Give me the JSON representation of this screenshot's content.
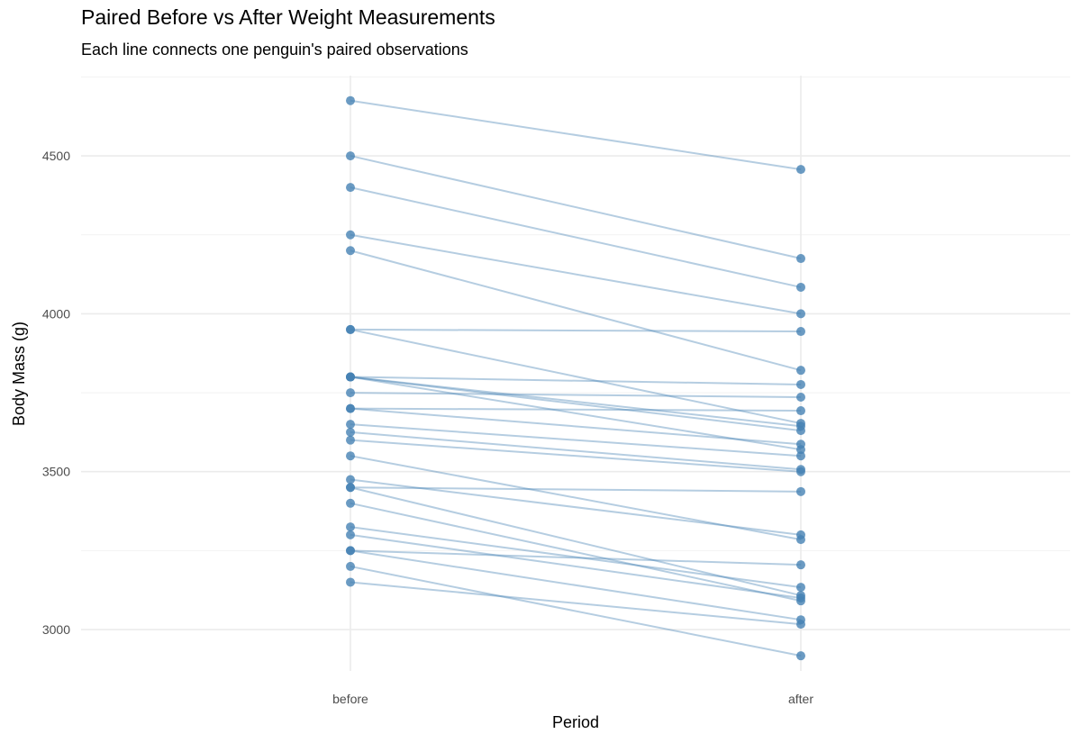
{
  "chart_data": {
    "type": "line",
    "title": "Paired Before vs After Weight Measurements",
    "subtitle": "Each line connects one penguin's paired observations",
    "xlabel": "Period",
    "ylabel": "Body Mass (g)",
    "categories": [
      "before",
      "after"
    ],
    "yticks": [
      3000,
      3500,
      4000,
      4500
    ],
    "ylim": [
      2869,
      4754
    ],
    "grid": true,
    "color": "#4682b4",
    "pairs": [
      [
        4675,
        4457
      ],
      [
        4500,
        4175
      ],
      [
        4400,
        4084
      ],
      [
        4250,
        4000
      ],
      [
        4200,
        3821
      ],
      [
        3950,
        3944
      ],
      [
        3950,
        3653
      ],
      [
        3800,
        3776
      ],
      [
        3800,
        3644
      ],
      [
        3800,
        3630
      ],
      [
        3800,
        3570
      ],
      [
        3750,
        3736
      ],
      [
        3700,
        3693
      ],
      [
        3700,
        3587
      ],
      [
        3650,
        3550
      ],
      [
        3625,
        3507
      ],
      [
        3600,
        3500
      ],
      [
        3550,
        3285
      ],
      [
        3475,
        3300
      ],
      [
        3450,
        3437
      ],
      [
        3450,
        3108
      ],
      [
        3400,
        3091
      ],
      [
        3325,
        3134
      ],
      [
        3300,
        3100
      ],
      [
        3250,
        3205
      ],
      [
        3250,
        3031
      ],
      [
        3200,
        2917
      ],
      [
        3150,
        3017
      ]
    ]
  }
}
